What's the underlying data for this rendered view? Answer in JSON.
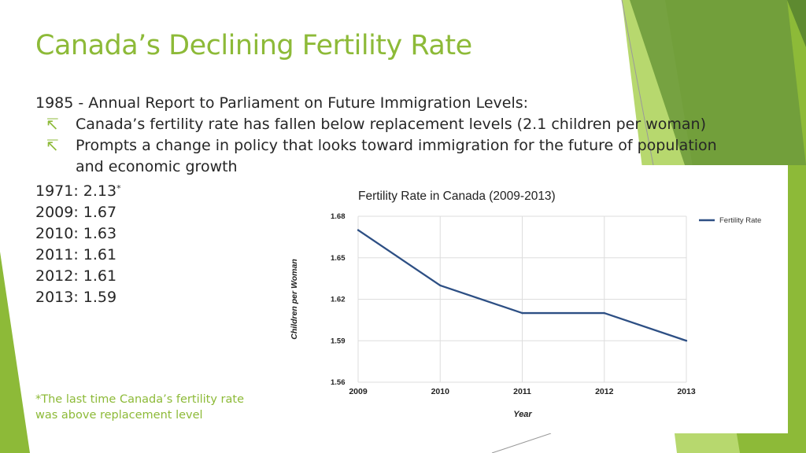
{
  "slide": {
    "title": "Canada’s Declining Fertility Rate",
    "intro": "1985 - Annual Report to Parliament on Future Immigration Levels:",
    "bullets": [
      "Canada’s fertility rate has fallen below replacement levels (2.1 children per woman)",
      "Prompts a change in policy that looks toward immigration for the future of population",
      "and economic growth"
    ],
    "bullet_glyph": "↸",
    "rates": [
      {
        "label": "1971: 2.13",
        "mark": "*"
      },
      {
        "label": "2009: 1.67",
        "mark": ""
      },
      {
        "label": "2010: 1.63",
        "mark": ""
      },
      {
        "label": "2011: 1.61",
        "mark": ""
      },
      {
        "label": "2012: 1.61",
        "mark": ""
      },
      {
        "label": "2013: 1.59",
        "mark": ""
      }
    ],
    "footnote": [
      "*The last time Canada’s fertility rate",
      "was above replacement level"
    ],
    "accent_color": "#8dba38",
    "line_color": "#2d4f84"
  },
  "chart_data": {
    "type": "line",
    "title": "Fertility Rate in Canada (2009-2013)",
    "xlabel": "Year",
    "ylabel": "Children per Woman",
    "categories": [
      "2009",
      "2010",
      "2011",
      "2012",
      "2013"
    ],
    "series": [
      {
        "name": "Fertility Rate",
        "values": [
          1.67,
          1.63,
          1.61,
          1.61,
          1.59
        ]
      }
    ],
    "ylim": [
      1.56,
      1.68
    ],
    "yticks": [
      "1.56",
      "1.59",
      "1.62",
      "1.65",
      "1.68"
    ],
    "legend_position": "top-right",
    "grid": true
  }
}
